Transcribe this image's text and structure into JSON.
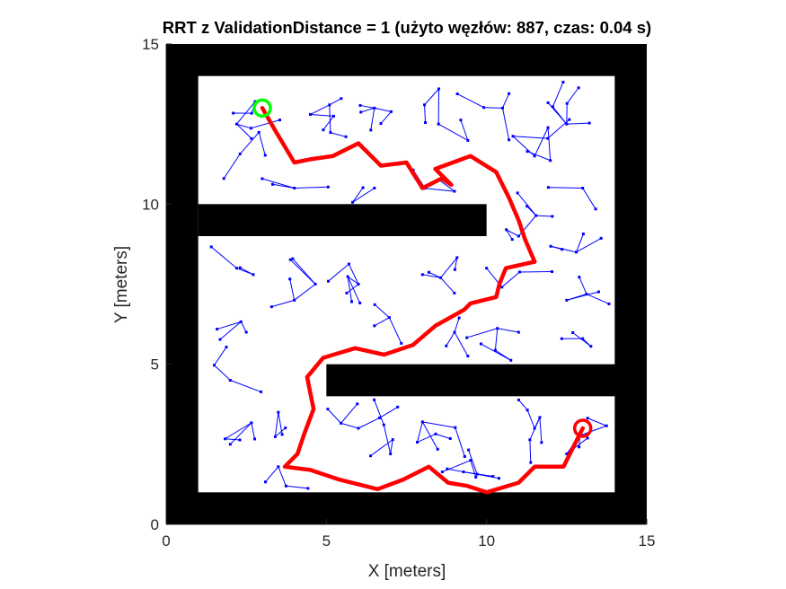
{
  "chart_data": {
    "type": "path-planning-map",
    "title": "RRT z ValidationDistance = 1 (użyto węzłów: 887, czas: 0.04 s)",
    "xlabel": "X [meters]",
    "ylabel": "Y [meters]",
    "xlim": [
      0,
      15
    ],
    "ylim": [
      0,
      15
    ],
    "xticks": [
      0,
      5,
      10,
      15
    ],
    "yticks": [
      0,
      5,
      10,
      15
    ],
    "xtick_labels": [
      "0",
      "5",
      "10",
      "15"
    ],
    "ytick_labels": [
      "0",
      "5",
      "10",
      "15"
    ],
    "grid": false,
    "colors": {
      "obstacle": "#000000",
      "free_space": "#ffffff",
      "tree": "#0000ff",
      "path": "#ff0000",
      "start": "#00ff00",
      "goal": "#ff0000"
    },
    "obstacles": [
      {
        "name": "bottom-wall",
        "x0": 0,
        "y0": 0,
        "x1": 15,
        "y1": 1
      },
      {
        "name": "top-wall",
        "x0": 0,
        "y0": 14,
        "x1": 15,
        "y1": 15
      },
      {
        "name": "left-wall",
        "x0": 0,
        "y0": 0,
        "x1": 1,
        "y1": 15
      },
      {
        "name": "right-wall",
        "x0": 14,
        "y0": 0,
        "x1": 15,
        "y1": 15
      },
      {
        "name": "upper-bar",
        "x0": 1,
        "y0": 9,
        "x1": 10,
        "y1": 10
      },
      {
        "name": "lower-bar",
        "x0": 5,
        "y0": 4,
        "x1": 15,
        "y1": 5
      }
    ],
    "start": {
      "x": 3,
      "y": 13
    },
    "goal": {
      "x": 13,
      "y": 3
    },
    "path": [
      [
        3.0,
        13.0
      ],
      [
        3.4,
        12.3
      ],
      [
        4.0,
        11.3
      ],
      [
        4.5,
        11.4
      ],
      [
        5.2,
        11.5
      ],
      [
        6.0,
        11.9
      ],
      [
        6.7,
        11.2
      ],
      [
        7.5,
        11.3
      ],
      [
        8.0,
        10.5
      ],
      [
        8.6,
        10.8
      ],
      [
        8.9,
        10.6
      ],
      [
        8.4,
        11.1
      ],
      [
        9.5,
        11.5
      ],
      [
        10.3,
        11.0
      ],
      [
        10.7,
        10.2
      ],
      [
        11.0,
        9.5
      ],
      [
        11.2,
        8.9
      ],
      [
        11.5,
        8.2
      ],
      [
        10.6,
        8.0
      ],
      [
        10.4,
        7.5
      ],
      [
        10.3,
        7.1
      ],
      [
        9.5,
        6.9
      ],
      [
        9.3,
        6.7
      ],
      [
        8.4,
        6.2
      ],
      [
        7.7,
        5.6
      ],
      [
        6.8,
        5.3
      ],
      [
        5.9,
        5.5
      ],
      [
        4.9,
        5.2
      ],
      [
        4.4,
        4.6
      ],
      [
        4.6,
        3.6
      ],
      [
        4.3,
        2.8
      ],
      [
        4.1,
        2.2
      ],
      [
        3.7,
        1.8
      ],
      [
        4.5,
        1.7
      ],
      [
        5.4,
        1.4
      ],
      [
        6.6,
        1.1
      ],
      [
        7.4,
        1.4
      ],
      [
        8.2,
        1.8
      ],
      [
        8.8,
        1.3
      ],
      [
        9.4,
        1.2
      ],
      [
        10.0,
        1.0
      ],
      [
        11.0,
        1.3
      ],
      [
        11.5,
        1.8
      ],
      [
        12.4,
        1.8
      ],
      [
        13.0,
        3.0
      ]
    ],
    "tree_seed": 887
  }
}
